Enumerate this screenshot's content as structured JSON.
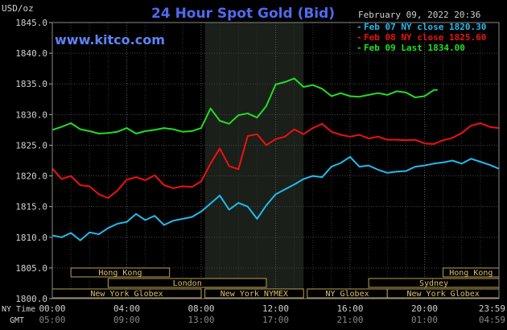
{
  "header": {
    "unit_label": "USD/oz",
    "title": "24 Hour Spot Gold (Bid)",
    "website": "www.kitco.com",
    "timestamp": "February 09, 2022 20:36"
  },
  "legend": [
    {
      "label": "Feb 07 NY close 1820.30",
      "color": "#22bbee"
    },
    {
      "label": "Feb 08 NY close 1825.60",
      "color": "#ee1111"
    },
    {
      "label": "Feb 09 Last 1834.00",
      "color": "#22dd22"
    }
  ],
  "sessions": [
    {
      "name": "Hong Kong",
      "row": 0,
      "start": 1.0,
      "end": 6.3
    },
    {
      "name": "Hong Kong",
      "row": 0,
      "start": 21.0,
      "end": 24.0
    },
    {
      "name": "London",
      "row": 1,
      "start": 3.0,
      "end": 11.5
    },
    {
      "name": "Sydney",
      "row": 1,
      "start": 17.0,
      "end": 24.0
    },
    {
      "name": "New York Globex",
      "row": 2,
      "start": 0.0,
      "end": 8.0
    },
    {
      "name": "New York NYMEX",
      "row": 2,
      "start": 8.2,
      "end": 13.5
    },
    {
      "name": "NY Globex",
      "row": 2,
      "start": 13.7,
      "end": 18.0
    },
    {
      "name": "New York Globex",
      "row": 2,
      "start": 18.0,
      "end": 24.0
    }
  ],
  "time_axis": {
    "ny_label": "NY Time",
    "gmt_label": "GMT",
    "ny_ticks": [
      "00:00",
      "04:00",
      "08:00",
      "12:00",
      "16:00",
      "20:00",
      "23:59"
    ],
    "gmt_ticks": [
      "05:00",
      "09:00",
      "13:00",
      "17:00",
      "21:00",
      "01:00",
      "04:59"
    ]
  },
  "chart_data": {
    "type": "line",
    "ylabel": "USD/oz",
    "xlabel": "NY Time",
    "ylim": [
      1800,
      1845
    ],
    "xlim": [
      0,
      24
    ],
    "y_ticks": [
      "1845.0",
      "1840.0",
      "1835.0",
      "1830.0",
      "1825.0",
      "1820.0",
      "1815.0",
      "1810.0",
      "1805.0",
      "1800.0"
    ],
    "shaded_range": [
      8.2,
      13.5
    ],
    "grid": true,
    "series": [
      {
        "name": "Feb 07 NY close 1820.30",
        "color": "#22bbee",
        "x": [
          0,
          0.5,
          1,
          1.5,
          2,
          2.5,
          3,
          3.5,
          4,
          4.5,
          5,
          5.5,
          6,
          6.5,
          7,
          7.5,
          8,
          8.5,
          9,
          9.5,
          10,
          10.5,
          11,
          11.5,
          12,
          12.5,
          13,
          13.5,
          14,
          14.5,
          15,
          15.5,
          16,
          16.5,
          17,
          17.5,
          18,
          18.5,
          19,
          19.5,
          20,
          20.5,
          21,
          21.5,
          22,
          22.5,
          23,
          23.5,
          23.98
        ],
        "y": [
          1810.3,
          1810.0,
          1810.7,
          1809.5,
          1810.8,
          1810.5,
          1811.5,
          1812.2,
          1812.5,
          1813.8,
          1812.8,
          1813.5,
          1812.0,
          1812.7,
          1813.0,
          1813.3,
          1814.2,
          1815.5,
          1816.8,
          1814.5,
          1815.6,
          1815.0,
          1813.0,
          1815.2,
          1817.0,
          1817.8,
          1818.6,
          1819.5,
          1820.0,
          1819.8,
          1821.5,
          1822.1,
          1823.1,
          1821.5,
          1821.7,
          1821.0,
          1820.5,
          1820.7,
          1820.8,
          1821.5,
          1821.7,
          1822.0,
          1822.2,
          1822.5,
          1822.0,
          1822.8,
          1822.3,
          1821.8,
          1821.2
        ]
      },
      {
        "name": "Feb 08 NY close 1825.60",
        "color": "#ee1111",
        "x": [
          0,
          0.5,
          1,
          1.5,
          2,
          2.5,
          3,
          3.5,
          4,
          4.5,
          5,
          5.5,
          6,
          6.5,
          7,
          7.5,
          8,
          8.5,
          9,
          9.5,
          10,
          10.5,
          11,
          11.5,
          12,
          12.5,
          13,
          13.5,
          14,
          14.5,
          15,
          15.5,
          16,
          16.5,
          17,
          17.5,
          18,
          18.5,
          19,
          19.5,
          20,
          20.5,
          21,
          21.5,
          22,
          22.5,
          23,
          23.5,
          23.98
        ],
        "y": [
          1821.2,
          1819.5,
          1820.0,
          1818.5,
          1818.3,
          1817.0,
          1816.4,
          1817.6,
          1819.4,
          1819.8,
          1819.3,
          1820.1,
          1818.5,
          1818.0,
          1818.3,
          1818.2,
          1819.1,
          1822.0,
          1824.5,
          1821.6,
          1821.1,
          1826.5,
          1826.8,
          1825.0,
          1826.0,
          1826.4,
          1827.6,
          1826.8,
          1827.8,
          1828.5,
          1827.2,
          1826.7,
          1826.4,
          1826.7,
          1826.1,
          1826.4,
          1825.9,
          1825.9,
          1825.8,
          1825.9,
          1825.3,
          1825.2,
          1825.8,
          1826.2,
          1827.0,
          1828.2,
          1828.6,
          1828.0,
          1827.8
        ]
      },
      {
        "name": "Feb 09 Last 1834.00",
        "color": "#22dd22",
        "x": [
          0,
          0.5,
          1,
          1.5,
          2,
          2.5,
          3,
          3.5,
          4,
          4.5,
          5,
          5.5,
          6,
          6.5,
          7,
          7.5,
          8,
          8.5,
          9,
          9.5,
          10,
          10.5,
          11,
          11.5,
          12,
          12.5,
          13,
          13.5,
          14,
          14.5,
          15,
          15.5,
          16,
          16.5,
          17,
          17.5,
          18,
          18.5,
          19,
          19.5,
          20,
          20.5,
          20.7
        ],
        "y": [
          1827.5,
          1828.0,
          1828.6,
          1827.6,
          1827.3,
          1826.9,
          1827.0,
          1827.2,
          1827.8,
          1826.9,
          1827.3,
          1827.5,
          1827.8,
          1827.6,
          1827.2,
          1827.3,
          1827.8,
          1831.0,
          1829.0,
          1828.5,
          1829.9,
          1830.2,
          1829.5,
          1831.4,
          1834.9,
          1835.3,
          1835.9,
          1834.5,
          1834.8,
          1834.2,
          1833.0,
          1833.5,
          1833.0,
          1832.9,
          1833.2,
          1833.5,
          1833.2,
          1833.8,
          1833.6,
          1832.8,
          1833.0,
          1834.0,
          1834.0
        ]
      }
    ]
  }
}
